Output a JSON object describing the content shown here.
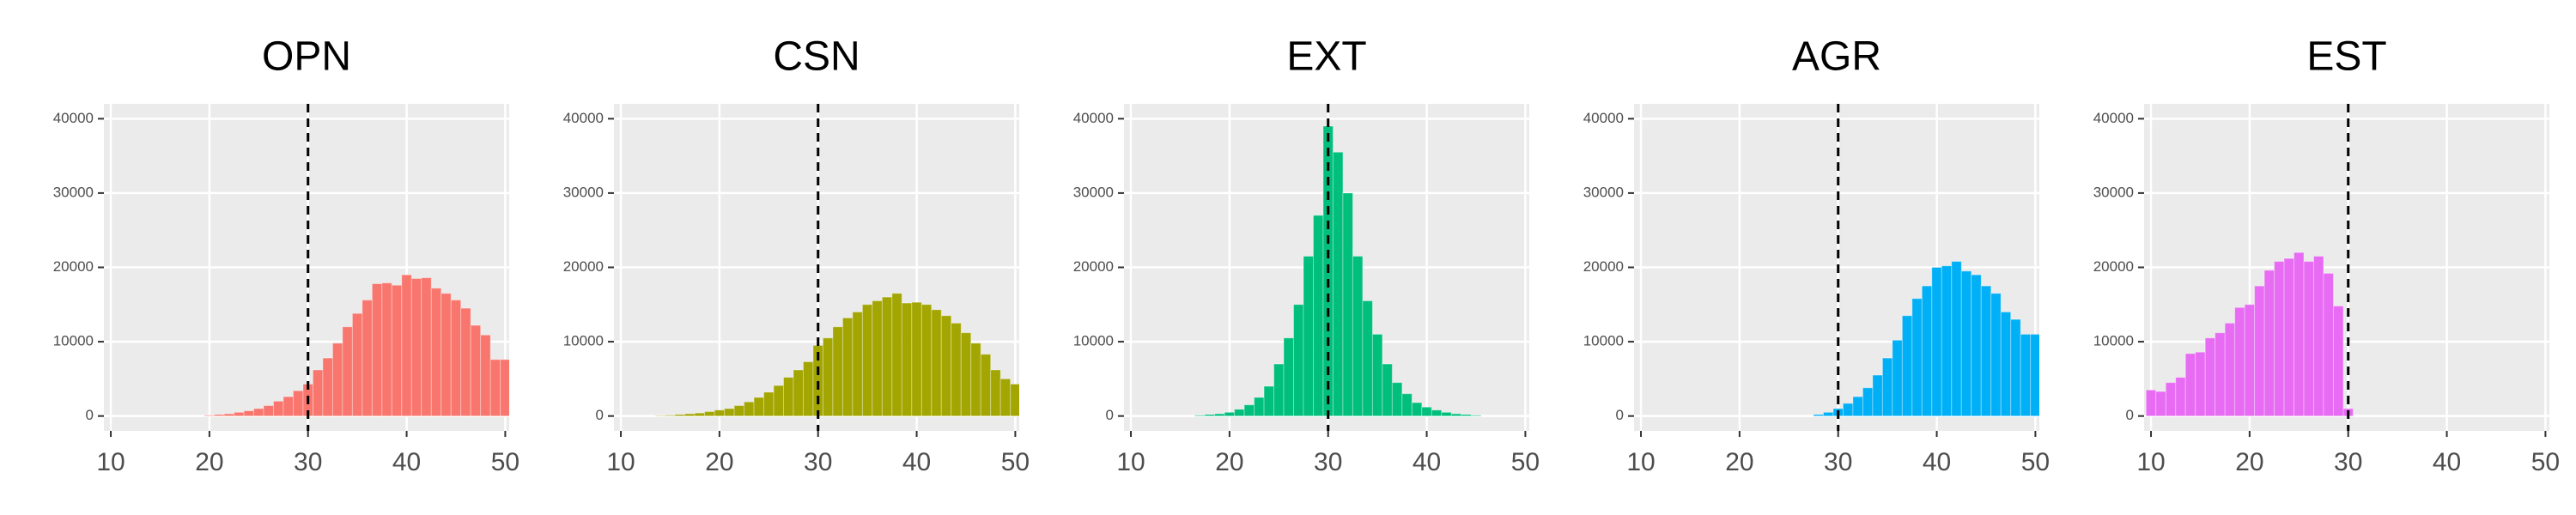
{
  "chart_data": [
    {
      "type": "histogram",
      "title": "OPN",
      "color": "#F8766D",
      "bins": [
        9.5,
        10.5,
        11.5,
        12.5,
        13.5,
        14.5,
        15.5,
        16.5,
        17.5,
        18.5,
        19.5,
        20.5,
        21.5,
        22.5,
        23.5,
        24.5,
        25.5,
        26.5,
        27.5,
        28.5,
        29.5,
        30.5,
        31.5,
        32.5,
        33.5,
        34.5,
        35.5,
        36.5,
        37.5,
        38.5,
        39.5,
        40.5,
        41.5,
        42.5,
        43.5,
        44.5,
        45.5,
        46.5,
        47.5,
        48.5,
        49.5,
        50.5
      ],
      "values": [
        0,
        0,
        0,
        0,
        0,
        0,
        0,
        0,
        0,
        0,
        100,
        200,
        300,
        500,
        700,
        1000,
        1400,
        2000,
        2600,
        3400,
        4300,
        6200,
        7800,
        9800,
        12000,
        13800,
        15600,
        17800,
        17900,
        17600,
        19000,
        18500,
        18600,
        17200,
        16500,
        15600,
        14500,
        12200,
        10900,
        7600,
        7600
      ],
      "xlim": [
        9.3,
        50.4
      ],
      "ylim": [
        -2000,
        42000
      ],
      "xticks": [
        10,
        20,
        30,
        40,
        50
      ],
      "yticks": [
        0,
        10000,
        20000,
        30000,
        40000
      ],
      "vline": 30,
      "grid": true
    },
    {
      "type": "histogram",
      "title": "CSN",
      "color": "#A3A500",
      "bins": [
        9.5,
        10.5,
        11.5,
        12.5,
        13.5,
        14.5,
        15.5,
        16.5,
        17.5,
        18.5,
        19.5,
        20.5,
        21.5,
        22.5,
        23.5,
        24.5,
        25.5,
        26.5,
        27.5,
        28.5,
        29.5,
        30.5,
        31.5,
        32.5,
        33.5,
        34.5,
        35.5,
        36.5,
        37.5,
        38.5,
        39.5,
        40.5,
        41.5,
        42.5,
        43.5,
        44.5,
        45.5,
        46.5,
        47.5,
        48.5,
        49.5,
        50.5
      ],
      "values": [
        0,
        0,
        0,
        0,
        50,
        100,
        200,
        300,
        400,
        600,
        800,
        1000,
        1400,
        1900,
        2500,
        3200,
        4100,
        5200,
        6200,
        7300,
        9500,
        10500,
        12000,
        13200,
        14000,
        15000,
        15500,
        16000,
        16500,
        15200,
        15300,
        15000,
        14300,
        13500,
        12500,
        11200,
        9800,
        8300,
        6200,
        5000,
        4300
      ],
      "xlim": [
        9.3,
        50.4
      ],
      "ylim": [
        -2000,
        42000
      ],
      "xticks": [
        10,
        20,
        30,
        40,
        50
      ],
      "yticks": [
        0,
        10000,
        20000,
        30000,
        40000
      ],
      "vline": 30,
      "grid": true
    },
    {
      "type": "histogram",
      "title": "EXT",
      "color": "#00BF7D",
      "bins": [
        9.5,
        10.5,
        11.5,
        12.5,
        13.5,
        14.5,
        15.5,
        16.5,
        17.5,
        18.5,
        19.5,
        20.5,
        21.5,
        22.5,
        23.5,
        24.5,
        25.5,
        26.5,
        27.5,
        28.5,
        29.5,
        30.5,
        31.5,
        32.5,
        33.5,
        34.5,
        35.5,
        36.5,
        37.5,
        38.5,
        39.5,
        40.5,
        41.5,
        42.5,
        43.5,
        44.5,
        45.5,
        46.5,
        47.5,
        48.5,
        49.5,
        50.5
      ],
      "values": [
        0,
        0,
        0,
        0,
        0,
        0,
        0,
        100,
        200,
        300,
        500,
        900,
        1500,
        2500,
        4000,
        7000,
        10500,
        15000,
        21500,
        27000,
        39000,
        35500,
        30000,
        21500,
        15500,
        11000,
        7000,
        4500,
        3000,
        1800,
        1200,
        800,
        500,
        300,
        200,
        100,
        0,
        0,
        0,
        0,
        0
      ],
      "xlim": [
        9.3,
        50.4
      ],
      "ylim": [
        -2000,
        42000
      ],
      "xticks": [
        10,
        20,
        30,
        40,
        50
      ],
      "yticks": [
        0,
        10000,
        20000,
        30000,
        40000
      ],
      "vline": 30,
      "grid": true
    },
    {
      "type": "histogram",
      "title": "AGR",
      "color": "#00B0F6",
      "bins": [
        9.5,
        10.5,
        11.5,
        12.5,
        13.5,
        14.5,
        15.5,
        16.5,
        17.5,
        18.5,
        19.5,
        20.5,
        21.5,
        22.5,
        23.5,
        24.5,
        25.5,
        26.5,
        27.5,
        28.5,
        29.5,
        30.5,
        31.5,
        32.5,
        33.5,
        34.5,
        35.5,
        36.5,
        37.5,
        38.5,
        39.5,
        40.5,
        41.5,
        42.5,
        43.5,
        44.5,
        45.5,
        46.5,
        47.5,
        48.5,
        49.5,
        50.5
      ],
      "values": [
        0,
        0,
        0,
        0,
        0,
        0,
        0,
        0,
        0,
        0,
        0,
        0,
        0,
        0,
        0,
        0,
        0,
        0,
        200,
        500,
        1000,
        1700,
        2600,
        3800,
        5500,
        7800,
        10200,
        13500,
        15800,
        17500,
        20000,
        20200,
        20800,
        19500,
        19000,
        17500,
        16500,
        14000,
        13000,
        11000,
        11000
      ],
      "xlim": [
        9.3,
        50.4
      ],
      "ylim": [
        -2000,
        42000
      ],
      "xticks": [
        10,
        20,
        30,
        40,
        50
      ],
      "yticks": [
        0,
        10000,
        20000,
        30000,
        40000
      ],
      "vline": 30,
      "grid": true
    },
    {
      "type": "histogram",
      "title": "EST",
      "color": "#E76BF3",
      "bins": [
        9.5,
        10.5,
        11.5,
        12.5,
        13.5,
        14.5,
        15.5,
        16.5,
        17.5,
        18.5,
        19.5,
        20.5,
        21.5,
        22.5,
        23.5,
        24.5,
        25.5,
        26.5,
        27.5,
        28.5,
        29.5,
        30.5,
        31.5,
        32.5,
        33.5,
        34.5,
        35.5,
        36.5,
        37.5,
        38.5,
        39.5,
        40.5,
        41.5,
        42.5,
        43.5,
        44.5,
        45.5,
        46.5,
        47.5,
        48.5,
        49.5,
        50.5
      ],
      "values": [
        3500,
        3300,
        4500,
        5200,
        8400,
        8600,
        10500,
        11200,
        12500,
        14600,
        15000,
        17500,
        19600,
        20800,
        21200,
        22000,
        20800,
        21500,
        19200,
        14800,
        1000,
        0,
        0,
        0,
        0,
        0,
        0,
        0,
        0,
        0,
        0,
        0,
        0,
        0,
        0,
        0,
        0,
        0,
        0,
        0,
        0
      ],
      "xlim": [
        9.3,
        50.4
      ],
      "ylim": [
        -2000,
        42000
      ],
      "xticks": [
        10,
        20,
        30,
        40,
        50
      ],
      "yticks": [
        0,
        10000,
        20000,
        30000,
        40000
      ],
      "vline": 30,
      "grid": true
    }
  ]
}
